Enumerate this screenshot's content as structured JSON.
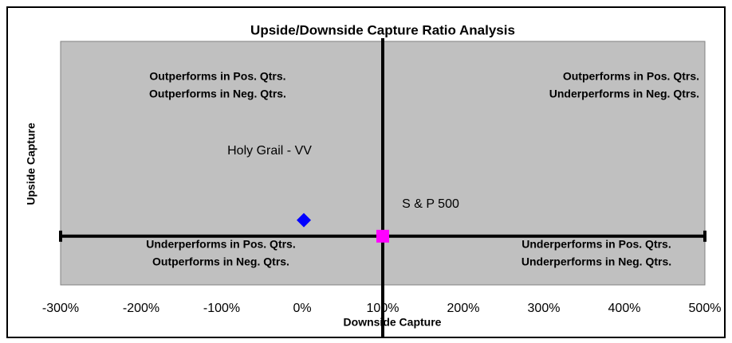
{
  "chart_data": {
    "type": "scatter",
    "title": "Upside/Downside Capture Ratio Analysis",
    "x_label": "Downside Capture",
    "y_label": "Upside Capture",
    "xlim": [
      -300,
      500
    ],
    "xticks": [
      {
        "value": -300,
        "label": "-300%"
      },
      {
        "value": -200,
        "label": "-200%"
      },
      {
        "value": -100,
        "label": "-100%"
      },
      {
        "value": 0,
        "label": "0%"
      },
      {
        "value": 100,
        "label": "100%"
      },
      {
        "value": 200,
        "label": "200%"
      },
      {
        "value": 300,
        "label": "300%"
      },
      {
        "value": 400,
        "label": "400%"
      },
      {
        "value": 500,
        "label": "500%"
      }
    ],
    "ylim": [
      0,
      500
    ],
    "x_cross": 100,
    "y_cross": 100,
    "plot_background": "#c0c0c0",
    "series": [
      {
        "name": "Holy Grail - VV",
        "color": "#0000ff",
        "marker": "diamond",
        "x": [
          2
        ],
        "values": [
          133
        ]
      },
      {
        "name": "S & P 500",
        "color": "#ff00ff",
        "marker": "square",
        "x": [
          100
        ],
        "values": [
          100
        ]
      }
    ],
    "quadrants": {
      "top-left": [
        "Outperforms in Pos. Qtrs.",
        "Outperforms in Neg. Qtrs."
      ],
      "top-right": [
        "Outperforms in Pos. Qtrs.",
        "Underperforms in Neg. Qtrs."
      ],
      "bottom-left": [
        "Underperforms in Pos. Qtrs.",
        "Outperforms in Neg. Qtrs."
      ],
      "bottom-right": [
        "Underperforms in Pos. Qtrs.",
        "Underperforms in Neg. Qtrs."
      ]
    }
  }
}
